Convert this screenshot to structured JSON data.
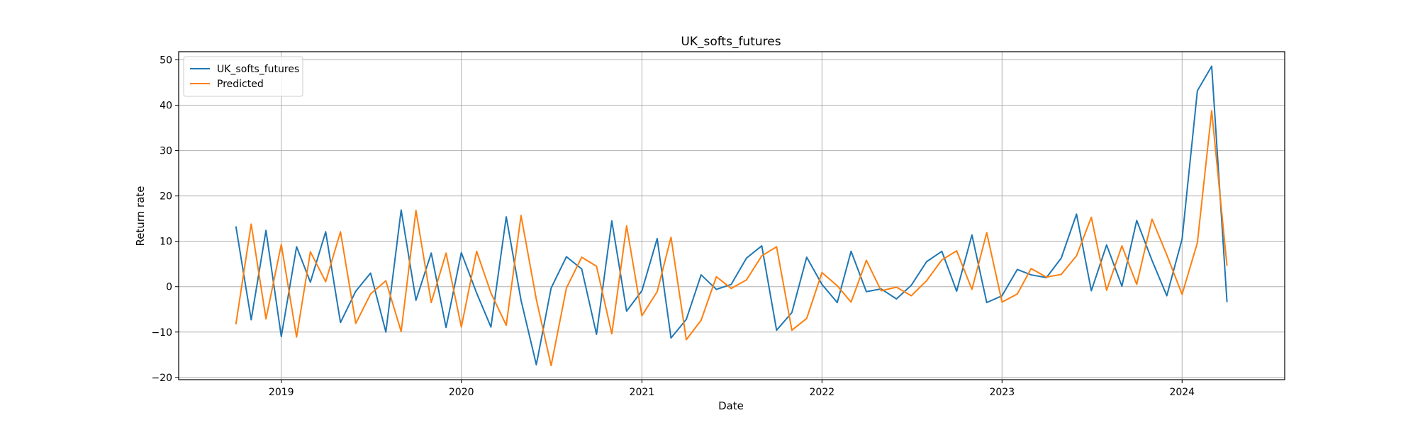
{
  "chart_data": {
    "type": "line",
    "title": "UK_softs_futures",
    "xlabel": "Date",
    "ylabel": "Return rate",
    "x": [
      "2018-10-01",
      "2018-11-01",
      "2018-12-01",
      "2019-01-01",
      "2019-02-01",
      "2019-03-01",
      "2019-04-01",
      "2019-05-01",
      "2019-06-01",
      "2019-07-01",
      "2019-08-01",
      "2019-09-01",
      "2019-10-01",
      "2019-11-01",
      "2019-12-01",
      "2020-01-01",
      "2020-02-01",
      "2020-03-01",
      "2020-04-01",
      "2020-05-01",
      "2020-06-01",
      "2020-07-01",
      "2020-08-01",
      "2020-09-01",
      "2020-10-01",
      "2020-11-01",
      "2020-12-01",
      "2021-01-01",
      "2021-02-01",
      "2021-03-01",
      "2021-04-01",
      "2021-05-01",
      "2021-06-01",
      "2021-07-01",
      "2021-08-01",
      "2021-09-01",
      "2021-10-01",
      "2021-11-01",
      "2021-12-01",
      "2022-01-01",
      "2022-02-01",
      "2022-03-01",
      "2022-04-01",
      "2022-05-01",
      "2022-06-01",
      "2022-07-01",
      "2022-08-01",
      "2022-09-01",
      "2022-10-01",
      "2022-11-01",
      "2022-12-01",
      "2023-01-01",
      "2023-02-01",
      "2023-03-01",
      "2023-04-01",
      "2023-05-01",
      "2023-06-01",
      "2023-07-01",
      "2023-08-01",
      "2023-09-01",
      "2023-10-01",
      "2023-11-01",
      "2023-12-01",
      "2024-01-01",
      "2024-02-01",
      "2024-03-01",
      "2024-04-01"
    ],
    "series": [
      {
        "name": "UK_softs_futures",
        "color": "#1f77b4",
        "values": [
          13.3,
          -7.3,
          12.4,
          -11.0,
          8.8,
          1.0,
          12.1,
          -7.9,
          -1.0,
          3.0,
          -10.0,
          16.9,
          -3.0,
          7.4,
          -9.0,
          7.5,
          -1.4,
          -8.9,
          15.4,
          -3.0,
          -17.2,
          -0.3,
          6.6,
          3.9,
          -10.5,
          14.5,
          -5.4,
          -0.9,
          10.6,
          -11.3,
          -7.2,
          2.6,
          -0.6,
          0.5,
          6.3,
          9.0,
          -9.6,
          -5.7,
          6.5,
          0.5,
          -3.5,
          7.8,
          -1.1,
          -0.5,
          -2.7,
          0.3,
          5.5,
          7.8,
          -1.0,
          11.4,
          -3.5,
          -2.0,
          3.8,
          2.6,
          2.0,
          6.3,
          16.0,
          -0.9,
          9.2,
          0.1,
          14.6,
          5.8,
          -2.0,
          10.5,
          43.2,
          48.6,
          -3.4
        ]
      },
      {
        "name": "Predicted",
        "color": "#ff7f0e",
        "values": [
          -8.3,
          13.8,
          -7.1,
          9.3,
          -11.1,
          7.7,
          1.1,
          12.1,
          -8.1,
          -1.6,
          1.3,
          -9.9,
          16.8,
          -3.5,
          7.4,
          -8.9,
          7.8,
          -1.4,
          -8.5,
          15.7,
          -2.8,
          -17.4,
          -0.3,
          6.5,
          4.5,
          -10.4,
          13.4,
          -6.4,
          -1.1,
          10.9,
          -11.7,
          -7.4,
          2.2,
          -0.4,
          1.5,
          6.8,
          8.8,
          -9.6,
          -7.0,
          3.1,
          0.2,
          -3.4,
          5.8,
          -0.9,
          -0.1,
          -2.0,
          1.3,
          5.9,
          7.9,
          -0.6,
          11.9,
          -3.4,
          -1.6,
          4.0,
          2.1,
          2.7,
          6.8,
          15.3,
          -0.8,
          9.0,
          0.5,
          14.9,
          7.0,
          -1.7,
          9.7,
          38.8,
          4.6
        ]
      }
    ],
    "xticks": [
      {
        "value": "2019-01-01",
        "label": "2019"
      },
      {
        "value": "2020-01-01",
        "label": "2020"
      },
      {
        "value": "2021-01-01",
        "label": "2021"
      },
      {
        "value": "2022-01-01",
        "label": "2022"
      },
      {
        "value": "2023-01-01",
        "label": "2023"
      },
      {
        "value": "2024-01-01",
        "label": "2024"
      }
    ],
    "yticks": [
      -20,
      -10,
      0,
      10,
      20,
      30,
      40,
      50
    ],
    "xlim": [
      "2018-06-07",
      "2024-07-27"
    ],
    "ylim": [
      -20.5,
      51.8
    ],
    "grid": true,
    "legend": "top-left"
  }
}
